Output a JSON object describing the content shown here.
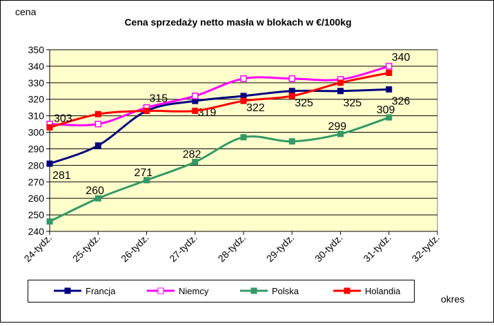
{
  "chart_data": {
    "type": "line",
    "title": "Cena sprzedaży netto masła  w blokach  w €/100kg",
    "y_label": "cena",
    "x_label": "okres",
    "categories": [
      "24-tydz.",
      "25-tydz.",
      "26-tydz.",
      "27-tydz.",
      "28-tydz.",
      "29-tydz.",
      "30-tydz.",
      "31-tydz.",
      "32-tydz."
    ],
    "series": [
      {
        "name": "Francja",
        "color": "#000080",
        "marker": "square",
        "values": [
          281,
          292,
          313,
          319,
          322,
          325,
          325,
          326,
          null
        ],
        "value_labels": [
          "281",
          null,
          null,
          "319",
          "322",
          "325",
          "325",
          "326",
          null
        ]
      },
      {
        "name": "Niemcy",
        "color": "#ff00ff",
        "marker": "open-square",
        "values": [
          305,
          305,
          315,
          322,
          332.5,
          332.5,
          332,
          340,
          null
        ],
        "value_labels": [
          null,
          null,
          "315",
          null,
          null,
          null,
          null,
          "340",
          null
        ]
      },
      {
        "name": "Polska",
        "color": "#339966",
        "marker": "square",
        "values": [
          246,
          260,
          271,
          282,
          297,
          294.5,
          299,
          309,
          null
        ],
        "value_labels": [
          null,
          "260",
          "271",
          "282",
          null,
          null,
          "299",
          "309",
          null
        ]
      },
      {
        "name": "Holandia",
        "color": "#ff0000",
        "marker": "square",
        "values": [
          303,
          311,
          313,
          313,
          319,
          322,
          330,
          336,
          null
        ],
        "value_labels": [
          "303",
          null,
          null,
          null,
          null,
          null,
          null,
          null,
          null
        ]
      }
    ],
    "ylim": [
      240,
      350
    ],
    "yticks": [
      240,
      250,
      260,
      270,
      280,
      290,
      300,
      310,
      320,
      330,
      340,
      350
    ],
    "grid": true,
    "legend": "bottom",
    "smooth": true
  }
}
